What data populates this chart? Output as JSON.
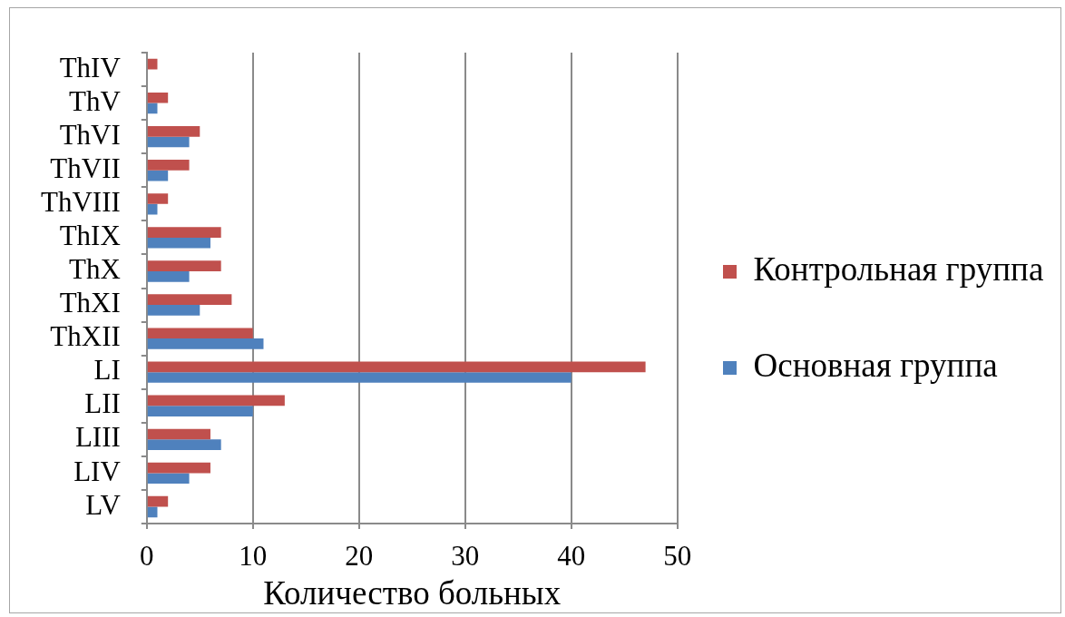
{
  "chart_data": {
    "type": "bar",
    "orientation": "horizontal",
    "categories": [
      "ThIV",
      "ThV",
      "ThVI",
      "ThVII",
      "ThVIII",
      "ThIX",
      "ThX",
      "ThXI",
      "ThXII",
      "LI",
      "LII",
      "LIII",
      "LIV",
      "LV"
    ],
    "series": [
      {
        "name": "Контрольная группа",
        "color": "#c0504d",
        "values": [
          1,
          2,
          5,
          4,
          2,
          7,
          7,
          8,
          10,
          47,
          13,
          6,
          6,
          2
        ]
      },
      {
        "name": "Основная группа",
        "color": "#4f81bd",
        "values": [
          0,
          1,
          4,
          2,
          1,
          6,
          4,
          5,
          11,
          40,
          10,
          7,
          4,
          1
        ]
      }
    ],
    "xlabel": "Количество больных",
    "xlim": [
      0,
      50
    ],
    "xticks": [
      0,
      10,
      20,
      30,
      40,
      50
    ],
    "grid": "x",
    "legend": "right"
  }
}
